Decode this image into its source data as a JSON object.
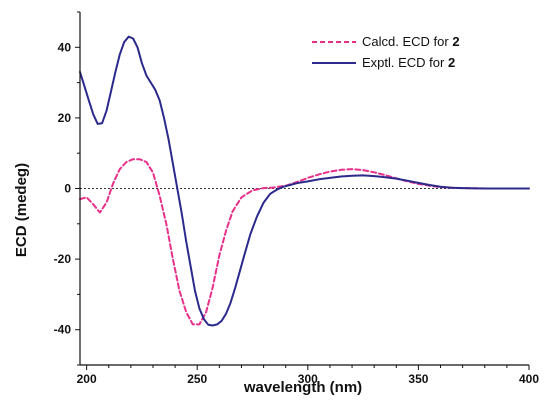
{
  "chart_data": {
    "type": "line",
    "title": "",
    "xlabel": "wavelength (nm)",
    "ylabel": "ECD (medeg)",
    "xlim": [
      197,
      400
    ],
    "ylim": [
      -50,
      50
    ],
    "xticks": [
      200,
      250,
      300,
      350,
      400
    ],
    "yticks": [
      -40,
      -20,
      0,
      20,
      40
    ],
    "x_tick_labels": [
      "200",
      "250",
      "300",
      "350",
      "400"
    ],
    "y_tick_labels": [
      "-40",
      "-20",
      "0",
      "20",
      "40"
    ],
    "grid": false,
    "zero_line": true,
    "legend": {
      "position": "top-right",
      "items": [
        {
          "prefix": "Calcd. ECD for ",
          "compound": "2"
        },
        {
          "prefix": "Exptl. ECD for ",
          "compound": "2"
        }
      ]
    },
    "series": [
      {
        "name": "Calcd. ECD for 2",
        "color": "#e8308a",
        "dash": "dashed",
        "x": [
          197,
          200,
          203,
          206,
          209,
          212,
          215,
          218,
          221,
          224,
          227,
          230,
          233,
          236,
          239,
          242,
          245,
          248,
          251,
          254,
          257,
          260,
          263,
          266,
          270,
          275,
          280,
          285,
          290,
          295,
          300,
          305,
          310,
          315,
          320,
          325,
          330,
          335,
          340,
          345,
          350,
          355,
          360,
          365,
          370,
          380,
          390,
          400
        ],
        "y": [
          -3,
          -2.5,
          -4.5,
          -6.8,
          -4,
          1.5,
          5.5,
          7.5,
          8.3,
          8.3,
          7.5,
          4.5,
          -2,
          -10,
          -20,
          -29,
          -35,
          -38.5,
          -38.5,
          -35,
          -28,
          -19,
          -12,
          -6.5,
          -2.5,
          -0.5,
          0.1,
          0.3,
          0.8,
          1.8,
          3,
          4,
          4.8,
          5.3,
          5.5,
          5.2,
          4.6,
          3.8,
          2.9,
          2,
          1.3,
          0.8,
          0.4,
          0.2,
          0.1,
          0,
          0,
          0
        ]
      },
      {
        "name": "Exptl. ECD for 2",
        "color": "#2b2a8c",
        "dash": "solid",
        "x": [
          197,
          199,
          201,
          203,
          205,
          207,
          209,
          211,
          213,
          215,
          217,
          219,
          221,
          223,
          225,
          227,
          229,
          231,
          233,
          235,
          237,
          239,
          241,
          243,
          245,
          247,
          249,
          251,
          253,
          255,
          257,
          259,
          261,
          263,
          265,
          267,
          269,
          271,
          274,
          277,
          280,
          283,
          286,
          289,
          292,
          295,
          300,
          305,
          310,
          315,
          320,
          325,
          330,
          335,
          340,
          345,
          350,
          355,
          360,
          365,
          370,
          380,
          390,
          400
        ],
        "y": [
          33,
          29,
          25,
          21,
          18.3,
          18.5,
          22,
          27.5,
          33,
          38,
          41.5,
          43,
          42.5,
          40,
          35.5,
          32,
          30,
          28,
          25,
          20,
          14,
          7,
          0,
          -7,
          -15,
          -22,
          -29,
          -34,
          -37,
          -38.6,
          -38.8,
          -38.5,
          -37.5,
          -35.5,
          -32.5,
          -28.5,
          -24,
          -19.5,
          -13,
          -8,
          -4,
          -1.5,
          -0.3,
          0.5,
          1,
          1.5,
          2,
          2.6,
          3,
          3.4,
          3.6,
          3.7,
          3.5,
          3.2,
          2.8,
          2.2,
          1.6,
          1,
          0.5,
          0.2,
          0.1,
          0,
          0,
          0
        ]
      }
    ]
  }
}
